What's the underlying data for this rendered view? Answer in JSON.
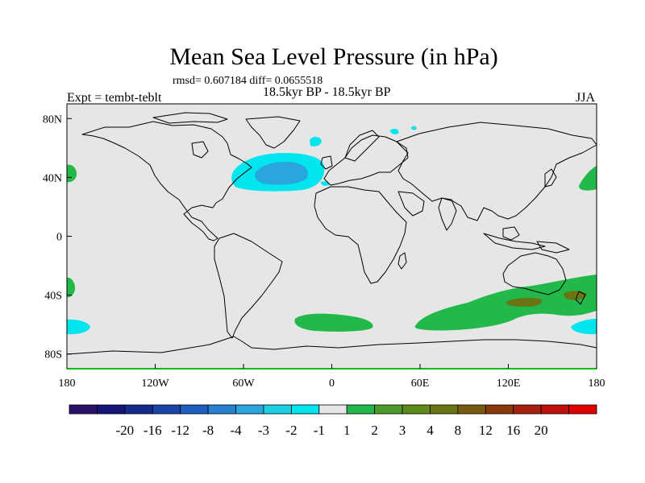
{
  "chart_data": {
    "type": "heatmap",
    "title": "Mean Sea Level Pressure (in hPa)",
    "stats_label": "rmsd= 0.607184 diff= 0.0655518",
    "period_label": "18.5kyr BP - 18.5kyr BP",
    "experiment_label": "Expt = tembt-teblt",
    "season_label": "JJA",
    "map_background": "#e6e6e6",
    "xlim": [
      -180,
      180
    ],
    "ylim": [
      -90,
      90
    ],
    "x_ticks": [
      {
        "value": -180,
        "label": "180"
      },
      {
        "value": -120,
        "label": "120W"
      },
      {
        "value": -60,
        "label": "60W"
      },
      {
        "value": 0,
        "label": "0"
      },
      {
        "value": 60,
        "label": "60E"
      },
      {
        "value": 120,
        "label": "120E"
      },
      {
        "value": 180,
        "label": "180"
      }
    ],
    "y_ticks": [
      {
        "value": 80,
        "label": "80N"
      },
      {
        "value": 40,
        "label": "40N"
      },
      {
        "value": 0,
        "label": "0"
      },
      {
        "value": -40,
        "label": "40S"
      },
      {
        "value": -80,
        "label": "80S"
      }
    ],
    "colorbar": {
      "colors": [
        "#2b0f6b",
        "#14147a",
        "#142a8c",
        "#1a44a8",
        "#1f5fbf",
        "#2a80d0",
        "#2aa5dd",
        "#1ccfe3",
        "#00e5ee",
        "#e6e6e6",
        "#22b84a",
        "#4c9a2a",
        "#5e8a1c",
        "#6a7412",
        "#7a5a10",
        "#8c3a0c",
        "#a8200e",
        "#c4100c",
        "#e00000"
      ],
      "labels": [
        "-20",
        "-16",
        "-12",
        "-8",
        "-4",
        "-3",
        "-2",
        "-1",
        "1",
        "2",
        "3",
        "4",
        "8",
        "12",
        "16",
        "20"
      ],
      "label_boundary_index": [
        2,
        3,
        4,
        5,
        6,
        7,
        8,
        9,
        10,
        11,
        12,
        13,
        14,
        15,
        16,
        17
      ]
    },
    "anomaly_regions": [
      {
        "name": "north-atlantic-negative",
        "value_range": "-2 to -1",
        "center": [
          -40,
          42
        ],
        "span": [
          55,
          18
        ]
      },
      {
        "name": "north-atlantic-core",
        "value_range": "-3 to -2",
        "center": [
          -38,
          43
        ],
        "span": [
          30,
          10
        ]
      },
      {
        "name": "west-pacific-north-positive",
        "value_range": "1 to 2",
        "center": [
          -176,
          45
        ],
        "span": [
          8,
          12
        ]
      },
      {
        "name": "east-pacific-north-positive",
        "value_range": "1 to 2",
        "center": [
          172,
          42
        ],
        "span": [
          14,
          20
        ]
      },
      {
        "name": "south-pacific-west-positive",
        "value_range": "1 to 2",
        "center": [
          -177,
          -32
        ],
        "span": [
          6,
          14
        ]
      },
      {
        "name": "south-pacific-negative",
        "value_range": "-2 to -1",
        "center": [
          -176,
          -63
        ],
        "span": [
          16,
          10
        ]
      },
      {
        "name": "south-atlantic-positive",
        "value_range": "1 to 2",
        "center": [
          -20,
          -58
        ],
        "span": [
          45,
          12
        ]
      },
      {
        "name": "southern-indian-positive",
        "value_range": "1 to 2",
        "center": [
          115,
          -48
        ],
        "span": [
          130,
          40
        ]
      },
      {
        "name": "australia-core-1",
        "value_range": "3 to 4",
        "center": [
          130,
          -44
        ],
        "span": [
          22,
          6
        ]
      },
      {
        "name": "australia-core-2",
        "value_range": "3 to 4",
        "center": [
          170,
          -40
        ],
        "span": [
          18,
          6
        ]
      },
      {
        "name": "south-pacific-east-negative",
        "value_range": "-2 to -1",
        "center": [
          178,
          -62
        ],
        "span": [
          14,
          10
        ]
      },
      {
        "name": "norway-sea-negative",
        "value_range": "-2 to -1",
        "center": [
          -10,
          68
        ],
        "span": [
          8,
          6
        ]
      },
      {
        "name": "barents-negative",
        "value_range": "-2 to -1",
        "center": [
          50,
          75
        ],
        "span": [
          10,
          5
        ]
      }
    ]
  }
}
